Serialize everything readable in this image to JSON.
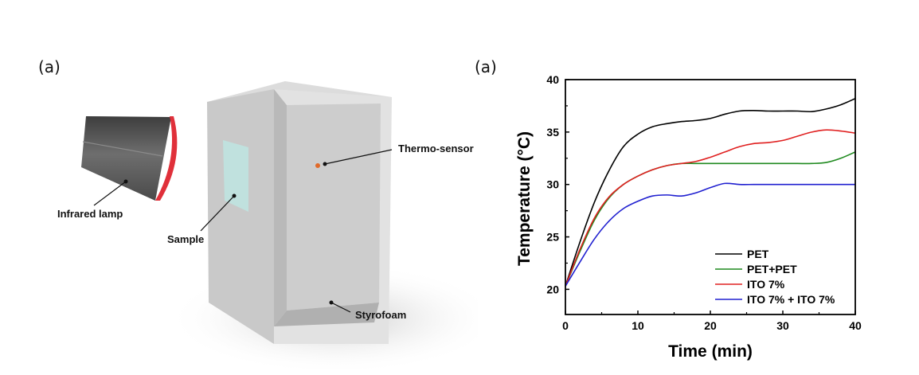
{
  "left_panel": {
    "label": "(a)",
    "callouts": {
      "lamp": "Infrared lamp",
      "sample": "Sample",
      "sensor": "Thermo-sensor",
      "box": "Styrofoam"
    },
    "colors": {
      "lamp_body": "#555555",
      "lamp_rim": "#e0303a",
      "box": "#cfcfcf",
      "sample": "#bfe3e0",
      "sensor": "#e06a2a"
    }
  },
  "right_panel": {
    "label": "(a)"
  },
  "chart_data": {
    "type": "line",
    "title": "",
    "xlabel": "Time (min)",
    "ylabel": "Temperature (°C)",
    "xlim": [
      0,
      40
    ],
    "ylim": [
      17.6,
      40
    ],
    "xticks": [
      0,
      10,
      20,
      30,
      40
    ],
    "yticks": [
      20,
      25,
      30,
      35,
      40
    ],
    "grid": false,
    "legend_position": "bottom-right",
    "series": [
      {
        "name": "PET",
        "color": "#000000",
        "x": [
          0,
          2,
          4,
          6,
          8,
          10,
          12,
          14,
          16,
          18,
          20,
          22,
          24,
          26,
          28,
          30,
          32,
          34,
          36,
          38,
          40
        ],
        "y": [
          20.3,
          24.5,
          28.3,
          31.3,
          33.6,
          34.8,
          35.5,
          35.8,
          36.0,
          36.1,
          36.3,
          36.7,
          37.0,
          37.05,
          37.0,
          37.0,
          37.0,
          36.95,
          37.2,
          37.6,
          38.2
        ]
      },
      {
        "name": "PET+PET",
        "color": "#1f8a1f",
        "x": [
          0,
          2,
          4,
          6,
          8,
          10,
          12,
          14,
          16,
          18,
          20,
          22,
          24,
          26,
          28,
          30,
          32,
          34,
          36,
          38,
          40
        ],
        "y": [
          20.3,
          23.6,
          26.6,
          28.7,
          30.0,
          30.8,
          31.4,
          31.8,
          32.0,
          32.0,
          32.0,
          32.0,
          32.0,
          32.0,
          32.0,
          32.0,
          32.0,
          32.0,
          32.1,
          32.5,
          33.1
        ]
      },
      {
        "name": "ITO 7%",
        "color": "#e02020",
        "x": [
          0,
          2,
          4,
          6,
          8,
          10,
          12,
          14,
          16,
          18,
          20,
          22,
          24,
          26,
          28,
          30,
          32,
          34,
          36,
          38,
          40
        ],
        "y": [
          20.3,
          23.8,
          26.8,
          28.8,
          30.0,
          30.8,
          31.4,
          31.8,
          32.0,
          32.2,
          32.6,
          33.1,
          33.6,
          33.9,
          34.0,
          34.2,
          34.6,
          35.0,
          35.2,
          35.1,
          34.9
        ]
      },
      {
        "name": "ITO 7% + ITO 7%",
        "color": "#2020d0",
        "x": [
          0,
          2,
          4,
          6,
          8,
          10,
          12,
          14,
          16,
          18,
          20,
          22,
          24,
          26,
          28,
          30,
          32,
          34,
          36,
          38,
          40
        ],
        "y": [
          20.3,
          22.6,
          24.8,
          26.5,
          27.7,
          28.4,
          28.9,
          29.0,
          28.9,
          29.2,
          29.7,
          30.1,
          30.0,
          30.0,
          30.0,
          30.0,
          30.0,
          30.0,
          30.0,
          30.0,
          30.0
        ]
      }
    ]
  }
}
